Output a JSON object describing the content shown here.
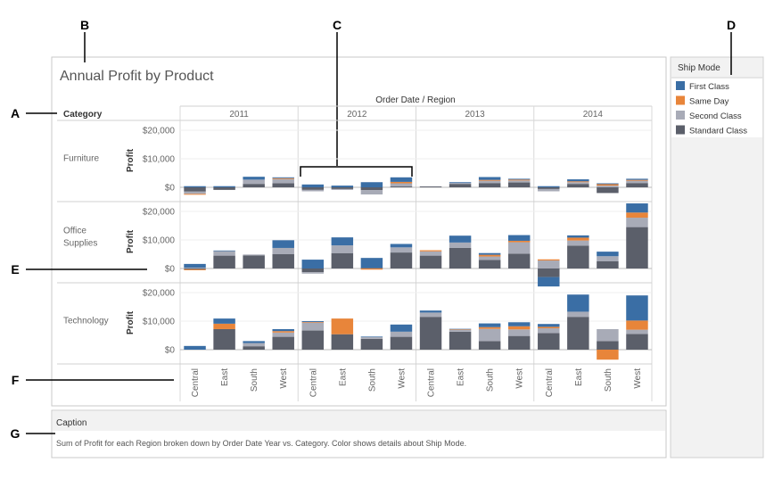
{
  "callouts": [
    "A",
    "B",
    "C",
    "D",
    "E",
    "F",
    "G"
  ],
  "title": "Annual Profit by Product",
  "column_header_title": "Order Date / Region",
  "row_header_title": "Category",
  "legend": {
    "title": "Ship Mode",
    "items": [
      {
        "label": "First Class",
        "color": "#3a6ea5"
      },
      {
        "label": "Same Day",
        "color": "#e8853a"
      },
      {
        "label": "Second Class",
        "color": "#a8abb7"
      },
      {
        "label": "Standard Class",
        "color": "#5b5f6a"
      }
    ]
  },
  "caption": {
    "label": "Caption",
    "text": "Sum of Profit for each Region broken down by Order Date Year vs. Category.  Color shows details about Ship Mode."
  },
  "chart_data": {
    "type": "bar",
    "stacked": true,
    "title": "Annual Profit by Product",
    "years": [
      "2011",
      "2012",
      "2013",
      "2014"
    ],
    "regions": [
      "Central",
      "East",
      "South",
      "West"
    ],
    "categories": [
      "Furniture",
      "Office Supplies",
      "Technology"
    ],
    "ylabel": "Profit",
    "yticks": [
      {
        "value": 0,
        "label": "$0"
      },
      {
        "value": 10000,
        "label": "$10,000"
      },
      {
        "value": 20000,
        "label": "$20,000"
      }
    ],
    "ylim": [
      -5000,
      25000
    ],
    "series_order": [
      "Standard Class",
      "Second Class",
      "Same Day",
      "First Class"
    ],
    "values": {
      "Furniture": {
        "2011": {
          "Central": [
            -1500,
            -800,
            -300,
            400
          ],
          "East": [
            -900,
            0,
            0,
            400
          ],
          "South": [
            1200,
            1500,
            0,
            1000
          ],
          "West": [
            1400,
            1500,
            300,
            300
          ]
        },
        "2012": {
          "Central": [
            -900,
            -500,
            0,
            1000
          ],
          "East": [
            -600,
            -300,
            0,
            600
          ],
          "South": [
            -1000,
            -1500,
            0,
            1800
          ],
          "West": [
            300,
            1100,
            500,
            1600
          ]
        },
        "2013": {
          "Central": [
            300,
            0,
            0,
            0
          ],
          "East": [
            1200,
            300,
            0,
            300
          ],
          "South": [
            1500,
            800,
            300,
            1000
          ],
          "West": [
            1700,
            700,
            300,
            300
          ]
        },
        "2014": {
          "Central": [
            -600,
            -800,
            0,
            400
          ],
          "East": [
            1200,
            600,
            300,
            700
          ],
          "South": [
            -2000,
            600,
            500,
            300
          ],
          "West": [
            1500,
            800,
            300,
            400
          ]
        }
      },
      "Office Supplies": {
        "2011": {
          "Central": [
            -300,
            300,
            -300,
            1300
          ],
          "East": [
            4500,
            1600,
            0,
            200
          ],
          "South": [
            4600,
            300,
            0,
            0
          ],
          "West": [
            5000,
            2200,
            0,
            2700
          ]
        },
        "2012": {
          "Central": [
            -1300,
            -500,
            0,
            3100
          ],
          "East": [
            5400,
            2700,
            0,
            2800
          ],
          "South": [
            200,
            0,
            -400,
            3500
          ],
          "West": [
            5600,
            1800,
            0,
            1200
          ]
        },
        "2013": {
          "Central": [
            4500,
            1500,
            400,
            0
          ],
          "East": [
            7200,
            1900,
            0,
            2400
          ],
          "South": [
            3000,
            1200,
            600,
            600
          ],
          "West": [
            5200,
            4000,
            500,
            2000
          ]
        },
        "2014": {
          "Central": [
            -3000,
            2800,
            400,
            -3300
          ],
          "East": [
            8000,
            1800,
            1000,
            800
          ],
          "South": [
            2500,
            1800,
            0,
            1600
          ],
          "West": [
            14500,
            3300,
            1800,
            3200
          ]
        }
      },
      "Technology": {
        "2011": {
          "Central": [
            0,
            0,
            0,
            1300
          ],
          "East": [
            7200,
            0,
            1900,
            1800
          ],
          "South": [
            1200,
            1100,
            0,
            700
          ],
          "West": [
            4500,
            1500,
            500,
            700
          ]
        },
        "2012": {
          "Central": [
            6700,
            2800,
            200,
            300
          ],
          "East": [
            5400,
            0,
            5500,
            0
          ],
          "South": [
            3800,
            600,
            0,
            200
          ],
          "West": [
            4500,
            1800,
            0,
            2500
          ]
        },
        "2013": {
          "Central": [
            11500,
            1500,
            0,
            700
          ],
          "East": [
            6300,
            600,
            200,
            200
          ],
          "South": [
            3000,
            4300,
            600,
            1300
          ],
          "West": [
            4800,
            2300,
            1100,
            1400
          ]
        },
        "2014": {
          "Central": [
            5800,
            1700,
            500,
            1000
          ],
          "East": [
            11500,
            1800,
            0,
            6000
          ],
          "South": [
            3000,
            4200,
            -3500,
            0
          ],
          "West": [
            5500,
            1500,
            3200,
            8800
          ]
        }
      }
    }
  }
}
